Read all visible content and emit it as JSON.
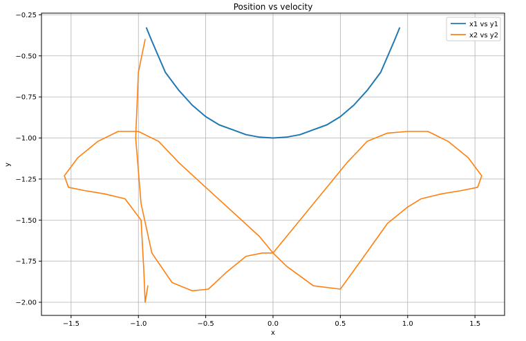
{
  "chart_data": {
    "type": "line",
    "title": "Position vs velocity",
    "xlabel": "x",
    "ylabel": "y",
    "xlim": [
      -1.72,
      1.72
    ],
    "ylim": [
      -2.08,
      -0.24
    ],
    "xticks": [
      -1.5,
      -1.0,
      -0.5,
      0.0,
      0.5,
      1.0,
      1.5
    ],
    "xtick_labels": [
      "−1.5",
      "−1.0",
      "−0.5",
      "0.0",
      "0.5",
      "1.0",
      "1.5"
    ],
    "yticks": [
      -0.25,
      -0.5,
      -0.75,
      -1.0,
      -1.25,
      -1.5,
      -1.75,
      -2.0
    ],
    "ytick_labels": [
      "−0.25",
      "−0.50",
      "−0.75",
      "−1.00",
      "−1.25",
      "−1.50",
      "−1.75",
      "−2.00"
    ],
    "grid": true,
    "legend_position": "top-right",
    "series": [
      {
        "name": "x1 vs y1",
        "color": "#1f77b4",
        "x": [
          -0.94,
          -0.9,
          -0.8,
          -0.7,
          -0.6,
          -0.5,
          -0.4,
          -0.3,
          -0.2,
          -0.1,
          0.0,
          0.1,
          0.2,
          0.3,
          0.4,
          0.5,
          0.6,
          0.7,
          0.8,
          0.9,
          0.94
        ],
        "y": [
          -0.33,
          -0.41,
          -0.6,
          -0.71,
          -0.8,
          -0.87,
          -0.92,
          -0.95,
          -0.98,
          -0.995,
          -1.0,
          -0.995,
          -0.98,
          -0.95,
          -0.92,
          -0.87,
          -0.8,
          -0.71,
          -0.6,
          -0.41,
          -0.33
        ]
      },
      {
        "name": "x2 vs y2",
        "color": "#ff7f0e",
        "x": [
          -0.95,
          -1.0,
          -1.02,
          -0.98,
          -0.9,
          -0.75,
          -0.6,
          -0.48,
          -0.35,
          -0.2,
          -0.08,
          0.0,
          0.1,
          0.25,
          0.4,
          0.55,
          0.7,
          0.85,
          1.0,
          1.15,
          1.3,
          1.45,
          1.55,
          1.52,
          1.4,
          1.25,
          1.1,
          1.0,
          0.85,
          0.65,
          0.5,
          0.3,
          0.1,
          0.0,
          -0.1,
          -0.3,
          -0.5,
          -0.7,
          -0.85,
          -1.0,
          -1.15,
          -1.3,
          -1.45,
          -1.55,
          -1.52,
          -1.4,
          -1.25,
          -1.1,
          -0.98,
          -0.96,
          -0.95,
          -0.93
        ],
        "y": [
          -0.4,
          -0.6,
          -1.0,
          -1.4,
          -1.7,
          -1.88,
          -1.93,
          -1.92,
          -1.82,
          -1.72,
          -1.7,
          -1.7,
          -1.6,
          -1.45,
          -1.3,
          -1.15,
          -1.02,
          -0.97,
          -0.96,
          -0.96,
          -1.02,
          -1.12,
          -1.23,
          -1.3,
          -1.32,
          -1.34,
          -1.37,
          -1.42,
          -1.52,
          -1.75,
          -1.92,
          -1.9,
          -1.78,
          -1.7,
          -1.6,
          -1.45,
          -1.3,
          -1.15,
          -1.02,
          -0.96,
          -0.96,
          -1.02,
          -1.12,
          -1.23,
          -1.3,
          -1.32,
          -1.34,
          -1.37,
          -1.5,
          -1.8,
          -2.0,
          -1.9
        ]
      }
    ]
  }
}
